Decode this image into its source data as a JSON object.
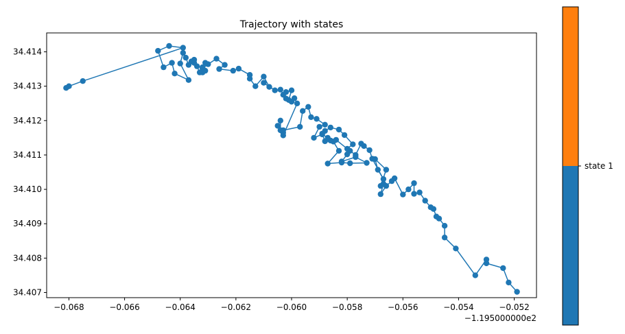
{
  "chart_data": {
    "type": "line",
    "title": "Trajectory with states",
    "xlabel": "",
    "ylabel": "",
    "x_offset_label": "−1.195000000e2",
    "xlim": [
      -0.0688,
      -0.0512
    ],
    "ylim": [
      34.40685,
      34.41455
    ],
    "grid": false,
    "marker": "circle",
    "line_color": "#1f77b4",
    "x_ticks": [
      {
        "value": -0.068,
        "label": "−0.068"
      },
      {
        "value": -0.066,
        "label": "−0.066"
      },
      {
        "value": -0.064,
        "label": "−0.064"
      },
      {
        "value": -0.062,
        "label": "−0.062"
      },
      {
        "value": -0.06,
        "label": "−0.060"
      },
      {
        "value": -0.058,
        "label": "−0.058"
      },
      {
        "value": -0.056,
        "label": "−0.056"
      },
      {
        "value": -0.054,
        "label": "−0.054"
      },
      {
        "value": -0.052,
        "label": "−0.052"
      }
    ],
    "y_ticks": [
      {
        "value": 34.407,
        "label": "34.407"
      },
      {
        "value": 34.408,
        "label": "34.408"
      },
      {
        "value": 34.409,
        "label": "34.409"
      },
      {
        "value": 34.41,
        "label": "34.410"
      },
      {
        "value": 34.411,
        "label": "34.411"
      },
      {
        "value": 34.412,
        "label": "34.412"
      },
      {
        "value": 34.413,
        "label": "34.413"
      },
      {
        "value": 34.414,
        "label": "34.414"
      }
    ],
    "points": [
      [
        -0.0519,
        34.40702
      ],
      [
        -0.0522,
        34.40729
      ],
      [
        -0.0524,
        34.40771
      ],
      [
        -0.053,
        34.40785
      ],
      [
        -0.053,
        34.40796
      ],
      [
        -0.0534,
        34.4075
      ],
      [
        -0.0541,
        34.40828
      ],
      [
        -0.0545,
        34.4086
      ],
      [
        -0.0545,
        34.40894
      ],
      [
        -0.0547,
        34.40915
      ],
      [
        -0.0548,
        34.40921
      ],
      [
        -0.0549,
        34.40943
      ],
      [
        -0.055,
        34.40948
      ],
      [
        -0.0552,
        34.40967
      ],
      [
        -0.0554,
        34.40991
      ],
      [
        -0.0556,
        34.40987
      ],
      [
        -0.0556,
        34.41018
      ],
      [
        -0.0558,
        34.41
      ],
      [
        -0.056,
        34.40985
      ],
      [
        -0.0563,
        34.41032
      ],
      [
        -0.0564,
        34.41024
      ],
      [
        -0.0566,
        34.4101
      ],
      [
        -0.0568,
        34.40986
      ],
      [
        -0.0567,
        34.41016
      ],
      [
        -0.0568,
        34.4101
      ],
      [
        -0.0566,
        34.41057
      ],
      [
        -0.057,
        34.41088
      ],
      [
        -0.0569,
        34.41057
      ],
      [
        -0.0567,
        34.4103
      ],
      [
        -0.0571,
        34.41089
      ],
      [
        -0.0572,
        34.41114
      ],
      [
        -0.0574,
        34.41126
      ],
      [
        -0.0575,
        34.41133
      ],
      [
        -0.0577,
        34.411
      ],
      [
        -0.0579,
        34.41112
      ],
      [
        -0.058,
        34.41102
      ],
      [
        -0.0582,
        34.41081
      ],
      [
        -0.0577,
        34.41094
      ],
      [
        -0.0573,
        34.41077
      ],
      [
        -0.0579,
        34.41076
      ],
      [
        -0.0582,
        34.41078
      ],
      [
        -0.0587,
        34.41075
      ],
      [
        -0.0583,
        34.41112
      ],
      [
        -0.0585,
        34.41139
      ],
      [
        -0.0588,
        34.4114
      ],
      [
        -0.0589,
        34.41162
      ],
      [
        -0.0588,
        34.4117
      ],
      [
        -0.0586,
        34.4118
      ],
      [
        -0.0583,
        34.41174
      ],
      [
        -0.0581,
        34.41158
      ],
      [
        -0.0578,
        34.41131
      ],
      [
        -0.058,
        34.41118
      ],
      [
        -0.0584,
        34.41144
      ],
      [
        -0.0586,
        34.41142
      ],
      [
        -0.0587,
        34.4115
      ],
      [
        -0.0589,
        34.4116
      ],
      [
        -0.0592,
        34.4115
      ],
      [
        -0.059,
        34.41182
      ],
      [
        -0.0588,
        34.41188
      ],
      [
        -0.0591,
        34.41205
      ],
      [
        -0.0593,
        34.4121
      ],
      [
        -0.0594,
        34.4124
      ],
      [
        -0.0596,
        34.41228
      ],
      [
        -0.0597,
        34.41182
      ],
      [
        -0.0603,
        34.41172
      ],
      [
        -0.0605,
        34.41185
      ],
      [
        -0.0604,
        34.412
      ],
      [
        -0.0604,
        34.41172
      ],
      [
        -0.0603,
        34.41165
      ],
      [
        -0.0603,
        34.41157
      ],
      [
        -0.0598,
        34.4125
      ],
      [
        -0.0599,
        34.41265
      ],
      [
        -0.06,
        34.41255
      ],
      [
        -0.0601,
        34.4126
      ],
      [
        -0.06,
        34.41288
      ],
      [
        -0.0602,
        34.41283
      ],
      [
        -0.0603,
        34.41275
      ],
      [
        -0.0602,
        34.41264
      ],
      [
        -0.0604,
        34.4129
      ],
      [
        -0.0606,
        34.41288
      ],
      [
        -0.061,
        34.4131
      ],
      [
        -0.0608,
        34.41298
      ],
      [
        -0.061,
        34.41328
      ],
      [
        -0.0613,
        34.413
      ],
      [
        -0.0615,
        34.41322
      ],
      [
        -0.0615,
        34.41333
      ],
      [
        -0.0619,
        34.41351
      ],
      [
        -0.0621,
        34.41345
      ],
      [
        -0.0626,
        34.4135
      ],
      [
        -0.0624,
        34.41362
      ],
      [
        -0.0627,
        34.4138
      ],
      [
        -0.063,
        34.41364
      ],
      [
        -0.0632,
        34.41352
      ],
      [
        -0.0631,
        34.41345
      ],
      [
        -0.0632,
        34.4134
      ],
      [
        -0.0631,
        34.41368
      ],
      [
        -0.0632,
        34.41355
      ],
      [
        -0.0633,
        34.4134
      ],
      [
        -0.0634,
        34.41358
      ],
      [
        -0.0635,
        34.41368
      ],
      [
        -0.0635,
        34.41377
      ],
      [
        -0.0636,
        34.41372
      ],
      [
        -0.0637,
        34.41362
      ],
      [
        -0.0638,
        34.41383
      ],
      [
        -0.0639,
        34.41397
      ],
      [
        -0.064,
        34.41366
      ],
      [
        -0.0637,
        34.41318
      ],
      [
        -0.0642,
        34.41337
      ],
      [
        -0.0643,
        34.41368
      ],
      [
        -0.0646,
        34.41355
      ],
      [
        -0.0648,
        34.41403
      ],
      [
        -0.0644,
        34.41417
      ],
      [
        -0.0639,
        34.41412
      ],
      [
        -0.0675,
        34.41315
      ],
      [
        -0.068,
        34.413
      ],
      [
        -0.0681,
        34.41295
      ]
    ],
    "colorbar": {
      "ticks": [
        {
          "label": "state 1"
        }
      ],
      "segments": [
        {
          "color": "#1f77b4",
          "from": 0.0,
          "to": 0.5
        },
        {
          "color": "#ff7f0e",
          "from": 0.5,
          "to": 1.0
        }
      ]
    }
  }
}
